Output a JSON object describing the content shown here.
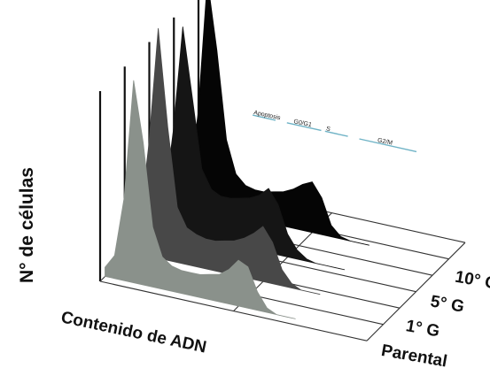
{
  "chart_data": {
    "type": "area",
    "title": "",
    "ylabel": "N° de células",
    "xlabel": "Contenido de ADN",
    "grid": true,
    "phase_labels": [
      "Apoptosis",
      "G0/G1",
      "S",
      "G2/M"
    ],
    "x": [
      0,
      5,
      10,
      15,
      20,
      25,
      30,
      35,
      40,
      45,
      50,
      55,
      60,
      65,
      70,
      75,
      80,
      85,
      90,
      95,
      100
    ],
    "series": [
      {
        "name": "Parental",
        "color": "#8a918b",
        "values": [
          4,
          10,
          36,
          88,
          62,
          26,
          14,
          11,
          10,
          10,
          10,
          11,
          12,
          15,
          20,
          18,
          8,
          2,
          0,
          0,
          0
        ]
      },
      {
        "name": "1° G",
        "color": "#484848",
        "values": [
          4,
          12,
          48,
          100,
          58,
          24,
          16,
          14,
          13,
          13,
          14,
          15,
          17,
          20,
          24,
          18,
          7,
          2,
          0,
          0,
          0
        ]
      },
      {
        "name": "5° G",
        "color": "#151515",
        "values": [
          3,
          10,
          44,
          90,
          60,
          30,
          22,
          20,
          20,
          21,
          22,
          24,
          28,
          22,
          10,
          4,
          1,
          0,
          0,
          0,
          0
        ]
      },
      {
        "name": "10° G",
        "color": "#050505",
        "values": [
          3,
          8,
          40,
          100,
          70,
          32,
          18,
          14,
          13,
          13,
          14,
          15,
          17,
          20,
          22,
          16,
          5,
          1,
          0,
          0,
          0
        ]
      }
    ]
  }
}
